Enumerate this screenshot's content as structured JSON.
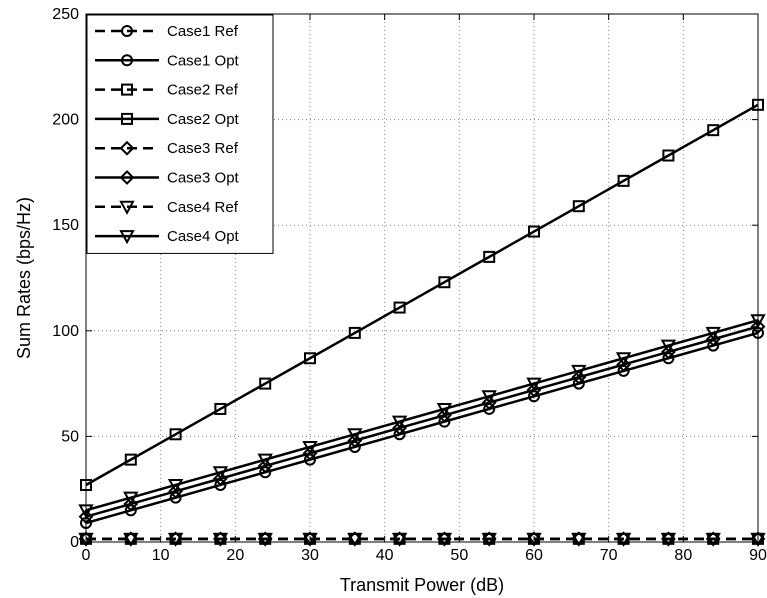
{
  "chart_data": {
    "type": "line",
    "xlabel": "Transmit Power (dB)",
    "ylabel": "Sum Rates (bps/Hz)",
    "xlim": [
      0,
      90
    ],
    "ylim": [
      0,
      250
    ],
    "xticks": [
      "0",
      "10",
      "20",
      "30",
      "40",
      "50",
      "60",
      "70",
      "80",
      "90"
    ],
    "yticks": [
      "0",
      "50",
      "100",
      "150",
      "200",
      "250"
    ],
    "grid": true,
    "legend_position": "top-left",
    "x": [
      0,
      6,
      12,
      18,
      24,
      30,
      36,
      42,
      48,
      54,
      60,
      66,
      72,
      78,
      84,
      90
    ],
    "series": [
      {
        "name": "Case1 Ref",
        "marker": "circle",
        "dashed": true,
        "values": [
          1.5,
          1.5,
          1.5,
          1.5,
          1.5,
          1.5,
          1.5,
          1.5,
          1.5,
          1.5,
          1.5,
          1.5,
          1.5,
          1.5,
          1.5,
          1.5
        ]
      },
      {
        "name": "Case1 Opt",
        "marker": "circle",
        "dashed": false,
        "values": [
          9,
          15,
          21,
          27,
          33,
          39,
          45,
          51,
          57,
          63,
          69,
          75,
          81,
          87,
          93,
          99
        ]
      },
      {
        "name": "Case2 Ref",
        "marker": "square",
        "dashed": true,
        "values": [
          1.5,
          1.5,
          1.5,
          1.5,
          1.5,
          1.5,
          1.5,
          1.5,
          1.5,
          1.5,
          1.5,
          1.5,
          1.5,
          1.5,
          1.5,
          1.5
        ]
      },
      {
        "name": "Case2 Opt",
        "marker": "square",
        "dashed": false,
        "values": [
          27,
          39,
          51,
          63,
          75,
          87,
          99,
          111,
          123,
          135,
          147,
          159,
          171,
          183,
          195,
          207
        ]
      },
      {
        "name": "Case3 Ref",
        "marker": "diamond",
        "dashed": true,
        "values": [
          1.5,
          1.5,
          1.5,
          1.5,
          1.5,
          1.5,
          1.5,
          1.5,
          1.5,
          1.5,
          1.5,
          1.5,
          1.5,
          1.5,
          1.5,
          1.5
        ]
      },
      {
        "name": "Case3 Opt",
        "marker": "diamond",
        "dashed": false,
        "values": [
          12,
          18,
          24,
          30,
          36,
          42,
          48,
          54,
          60,
          66,
          72,
          78,
          84,
          90,
          96,
          102
        ]
      },
      {
        "name": "Case4 Ref",
        "marker": "triangle-down",
        "dashed": true,
        "values": [
          1.5,
          1.5,
          1.5,
          1.5,
          1.5,
          1.5,
          1.5,
          1.5,
          1.5,
          1.5,
          1.5,
          1.5,
          1.5,
          1.5,
          1.5,
          1.5
        ]
      },
      {
        "name": "Case4 Opt",
        "marker": "triangle-down",
        "dashed": false,
        "values": [
          15,
          21,
          27,
          33,
          39,
          45,
          51,
          57,
          63,
          69,
          75,
          81,
          87,
          93,
          99,
          105
        ]
      }
    ],
    "colors": {
      "line": "#000000",
      "grid": "#7f7f7f",
      "background": "#ffffff"
    }
  }
}
